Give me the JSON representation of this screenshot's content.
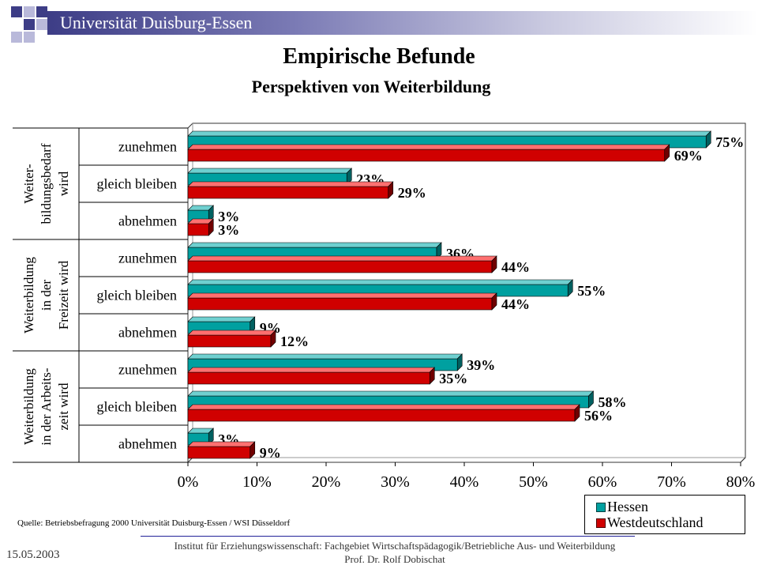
{
  "header": {
    "university": "Universität Duisburg-Essen"
  },
  "title": "Empirische Befunde",
  "subtitle": "Perspektiven von Weiterbildung",
  "colors": {
    "hessen": "#00a0a0",
    "west": "#d00000",
    "header_dark": "#3d3d86"
  },
  "chart_data": {
    "type": "bar",
    "orientation": "horizontal",
    "groups": [
      {
        "label_lines": [
          "Weiter-",
          "bildungsbedarf",
          "wird"
        ],
        "items": [
          {
            "category": "zunehmen",
            "hessen": 75,
            "west": 69
          },
          {
            "category": "gleich bleiben",
            "hessen": 23,
            "west": 29
          },
          {
            "category": "abnehmen",
            "hessen": 3,
            "west": 3
          }
        ]
      },
      {
        "label_lines": [
          "Weiterbildung",
          "in der",
          "Freizeit wird"
        ],
        "items": [
          {
            "category": "zunehmen",
            "hessen": 36,
            "west": 44
          },
          {
            "category": "gleich bleiben",
            "hessen": 55,
            "west": 44
          },
          {
            "category": "abnehmen",
            "hessen": 9,
            "west": 12
          }
        ]
      },
      {
        "label_lines": [
          "Weiterbildung",
          "in der Arbeits-",
          "zeit wird"
        ],
        "items": [
          {
            "category": "zunehmen",
            "hessen": 39,
            "west": 35
          },
          {
            "category": "gleich bleiben",
            "hessen": 58,
            "west": 56
          },
          {
            "category": "abnehmen",
            "hessen": 3,
            "west": 9
          }
        ]
      }
    ],
    "series": [
      {
        "name": "Hessen",
        "key": "hessen"
      },
      {
        "name": "Westdeutschland",
        "key": "west"
      }
    ],
    "xlim": [
      0,
      80
    ],
    "xticks": [
      "0%",
      "10%",
      "20%",
      "30%",
      "40%",
      "50%",
      "60%",
      "70%",
      "80%"
    ],
    "value_suffix": "%",
    "legend_position": "bottom-right"
  },
  "source": "Quelle: Betriebsbefragung 2000 Universität Duisburg-Essen / WSI Düsseldorf",
  "footer": {
    "line1": "Institut für Erziehungswissenschaft: Fachgebiet Wirtschaftspädagogik/Betriebliche Aus- und Weiterbildung",
    "line2": "Prof. Dr. Rolf Dobischat"
  },
  "date": "15.05.2003"
}
